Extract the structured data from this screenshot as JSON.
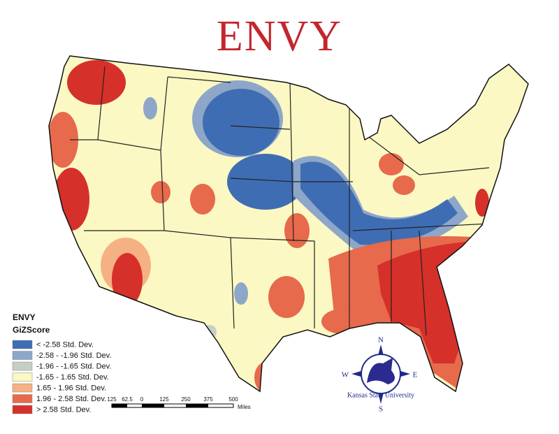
{
  "title": "ENVY",
  "legend": {
    "title": "ENVY",
    "subtitle": "GiZScore",
    "items": [
      {
        "label": "< -2.58 Std. Dev.",
        "color": "#3f6db3"
      },
      {
        "label": "-2.58 - -1.96 Std. Dev.",
        "color": "#8ea6c8"
      },
      {
        "label": "-1.96 - -1.65 Std. Dev.",
        "color": "#c6cfc5"
      },
      {
        "label": "-1.65 - 1.65 Std. Dev.",
        "color": "#fbf8c3"
      },
      {
        "label": "1.65 - 1.96 Std. Dev.",
        "color": "#f5b184"
      },
      {
        "label": "1.96 - 2.58 Std. Dev.",
        "color": "#e66a4b"
      },
      {
        "label": "> 2.58 Std. Dev.",
        "color": "#d6302a"
      }
    ]
  },
  "scale_bar": {
    "labels": [
      "125",
      "62.5",
      "0",
      "125",
      "250",
      "375",
      "500"
    ],
    "unit": "Miles"
  },
  "compass": {
    "n": "N",
    "s": "S",
    "e": "E",
    "w": "W"
  },
  "logo": "Kansas State University"
}
